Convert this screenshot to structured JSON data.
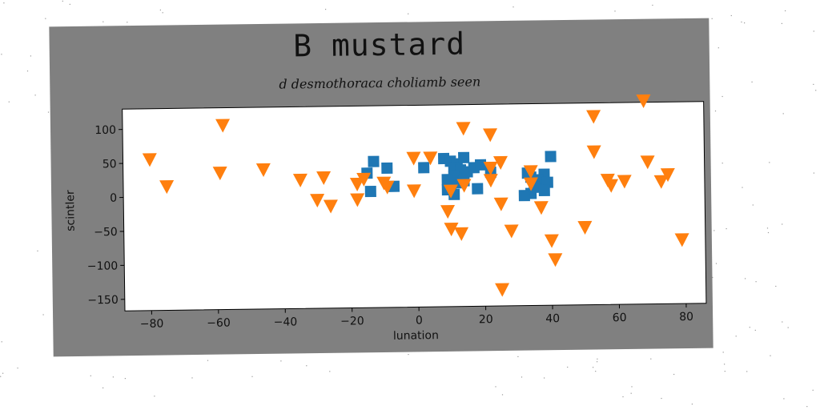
{
  "chart_data": {
    "type": "scatter",
    "title": "B mustard",
    "subtitle": "d desmothoraca choliamb seen",
    "xlabel": "lunation",
    "ylabel": "scintler",
    "xlim": [
      -88,
      86
    ],
    "ylim": [
      -167,
      130
    ],
    "xticks": [
      -80,
      -60,
      -40,
      -20,
      0,
      20,
      40,
      60,
      80
    ],
    "yticks": [
      -150,
      -100,
      -50,
      0,
      50,
      100
    ],
    "grid": false,
    "series": [
      {
        "marker": "square",
        "color": "#1f77b4",
        "points": [
          [
            -13,
            48
          ],
          [
            -9,
            38
          ],
          [
            -15,
            31
          ],
          [
            -14,
            4
          ],
          [
            -7,
            11
          ],
          [
            2,
            38
          ],
          [
            8,
            51
          ],
          [
            10,
            47
          ],
          [
            12,
            43
          ],
          [
            14,
            52
          ],
          [
            11,
            37
          ],
          [
            13,
            34
          ],
          [
            15,
            31
          ],
          [
            17,
            37
          ],
          [
            19,
            41
          ],
          [
            11,
            25
          ],
          [
            9,
            20
          ],
          [
            12,
            15
          ],
          [
            14,
            18
          ],
          [
            10,
            7
          ],
          [
            9,
            5
          ],
          [
            11,
            -2
          ],
          [
            18,
            6
          ],
          [
            22,
            30
          ],
          [
            33,
            28
          ],
          [
            34,
            22
          ],
          [
            38,
            26
          ],
          [
            36,
            18
          ],
          [
            39,
            14
          ],
          [
            34,
            -2
          ],
          [
            32,
            -5
          ],
          [
            35,
            7
          ],
          [
            38,
            2
          ],
          [
            40,
            52
          ]
        ]
      },
      {
        "marker": "triangle_down",
        "color": "#ff7f0e",
        "points": [
          [
            -80,
            55
          ],
          [
            -75,
            15
          ],
          [
            -58,
            104
          ],
          [
            -59,
            34
          ],
          [
            -46,
            38
          ],
          [
            -35,
            22
          ],
          [
            -28,
            25
          ],
          [
            -30,
            -8
          ],
          [
            -26,
            -17
          ],
          [
            -18,
            15
          ],
          [
            -18,
            -8
          ],
          [
            -16,
            22
          ],
          [
            -10,
            16
          ],
          [
            -9,
            10
          ],
          [
            -1,
            52
          ],
          [
            -1,
            4
          ],
          [
            4,
            52
          ],
          [
            10,
            3
          ],
          [
            9,
            -27
          ],
          [
            10,
            -53
          ],
          [
            14,
            95
          ],
          [
            13,
            -60
          ],
          [
            14,
            11
          ],
          [
            22,
            85
          ],
          [
            22,
            36
          ],
          [
            22,
            18
          ],
          [
            25,
            44
          ],
          [
            25,
            -17
          ],
          [
            25,
            -143
          ],
          [
            28,
            -57
          ],
          [
            34,
            30
          ],
          [
            34,
            12
          ],
          [
            37,
            -23
          ],
          [
            40,
            -72
          ],
          [
            41,
            -100
          ],
          [
            50,
            -53
          ],
          [
            53,
            58
          ],
          [
            53,
            110
          ],
          [
            57,
            16
          ],
          [
            58,
            8
          ],
          [
            62,
            14
          ],
          [
            68,
            132
          ],
          [
            69,
            42
          ],
          [
            73,
            13
          ],
          [
            75,
            23
          ],
          [
            79,
            -73
          ]
        ]
      }
    ]
  }
}
